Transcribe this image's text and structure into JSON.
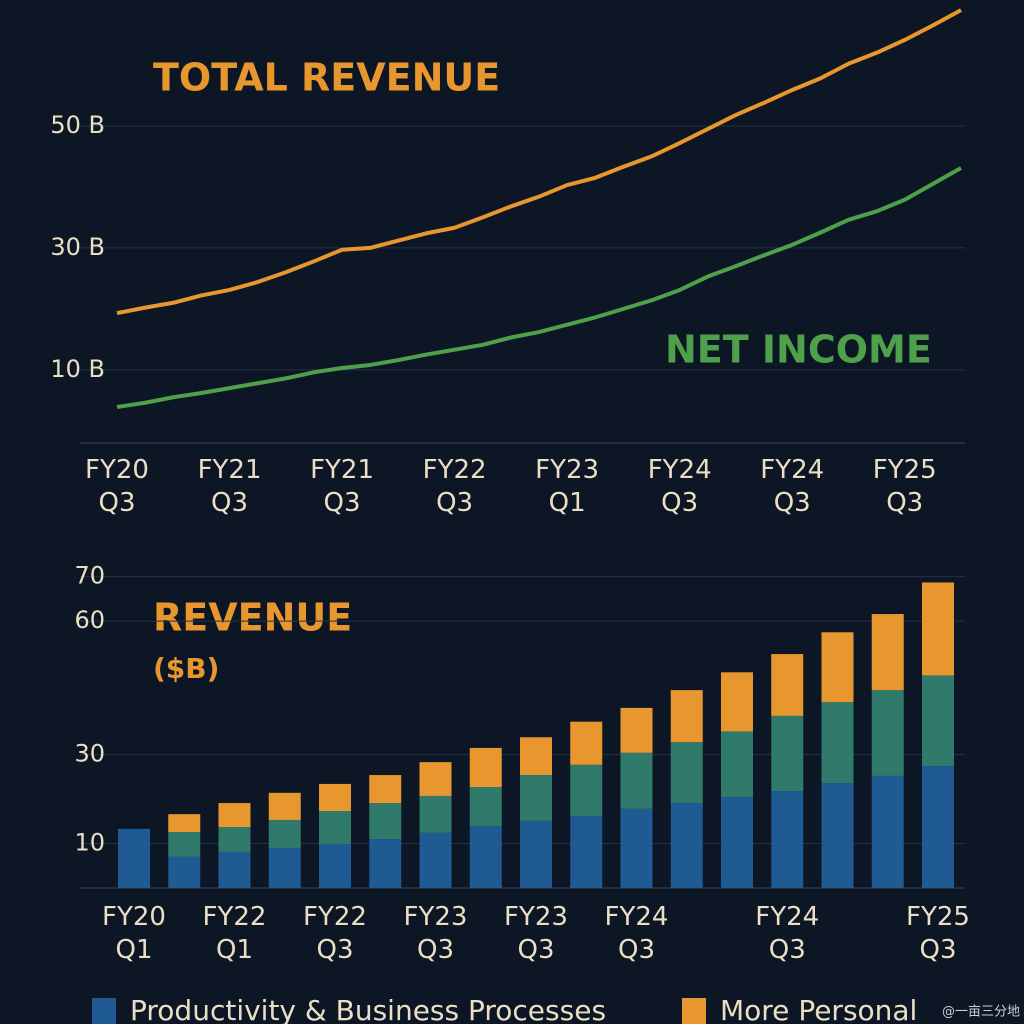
{
  "chart_data": [
    {
      "type": "line",
      "annotations": [
        "TOTAL REVENUE",
        "NET INCOME"
      ],
      "categories": [
        "FY20 Q3",
        null,
        null,
        null,
        "FY21 Q3",
        null,
        null,
        null,
        "FY21 Q3",
        null,
        null,
        null,
        "FY22 Q3",
        null,
        null,
        null,
        "FY23 Q1",
        null,
        null,
        null,
        "FY24 Q3",
        null,
        null,
        null,
        "FY24 Q3",
        null,
        null,
        null,
        "FY25 Q3",
        null,
        null
      ],
      "series": [
        {
          "color": "#e8962e",
          "values": [
            19.3,
            20.2,
            21.0,
            22.2,
            23.1,
            24.4,
            26.0,
            27.8,
            29.7,
            30.0,
            31.2,
            32.4,
            33.3,
            35.0,
            36.8,
            38.4,
            40.3,
            41.5,
            43.3,
            45.0,
            47.2,
            49.5,
            51.8,
            53.8,
            55.9,
            57.8,
            60.2,
            62.0,
            64.1,
            66.5,
            69.0
          ]
        },
        {
          "color": "#4fa04b",
          "values": [
            3.9,
            4.6,
            5.5,
            6.2,
            7.0,
            7.8,
            8.6,
            9.6,
            10.3,
            10.8,
            11.6,
            12.5,
            13.3,
            14.1,
            15.3,
            16.2,
            17.4,
            18.6,
            20.0,
            21.4,
            23.1,
            25.3,
            27.0,
            28.8,
            30.5,
            32.5,
            34.6,
            36.0,
            37.9,
            40.5,
            43.1
          ]
        }
      ],
      "ylim": [
        -2,
        70
      ],
      "yticks": [
        {
          "value": 10,
          "label": "10 B"
        },
        {
          "value": 30,
          "label": "30 B"
        },
        {
          "value": 50,
          "label": "50 B"
        }
      ],
      "grid": true
    },
    {
      "type": "stacked_bar",
      "annotations": [
        "REVENUE",
        "($B)"
      ],
      "categories": [
        "FY20 Q1",
        null,
        "FY22 Q1",
        null,
        "FY22 Q3",
        null,
        "FY23 Q3",
        null,
        "FY23 Q3",
        null,
        "FY24 Q3",
        null,
        null,
        "FY24 Q3",
        null,
        null,
        "FY25 Q3"
      ],
      "series": [
        {
          "name": "Productivity & Business Processes",
          "color": "#1f5a93",
          "values": [
            13.3,
            7.0,
            8.1,
            9.0,
            9.9,
            11.0,
            12.4,
            13.9,
            15.1,
            16.2,
            17.8,
            19.1,
            20.4,
            21.8,
            23.6,
            25.2,
            27.4
          ]
        },
        {
          "color": "#2f7a6a",
          "values": [
            0,
            5.6,
            5.6,
            6.3,
            7.4,
            8.1,
            8.3,
            8.8,
            10.3,
            11.5,
            12.6,
            13.7,
            14.8,
            16.9,
            18.2,
            19.3,
            20.4
          ]
        },
        {
          "name": "More Personal",
          "color": "#e8962e",
          "values": [
            0,
            4.0,
            5.4,
            6.1,
            6.1,
            6.3,
            7.6,
            8.8,
            8.5,
            9.7,
            10.1,
            11.7,
            13.3,
            13.9,
            15.7,
            17.1,
            20.9
          ]
        }
      ],
      "ylim": [
        0,
        76
      ],
      "yticks": [
        10,
        30,
        60,
        70
      ],
      "grid": true
    }
  ],
  "watermark": "@一亩三分地"
}
